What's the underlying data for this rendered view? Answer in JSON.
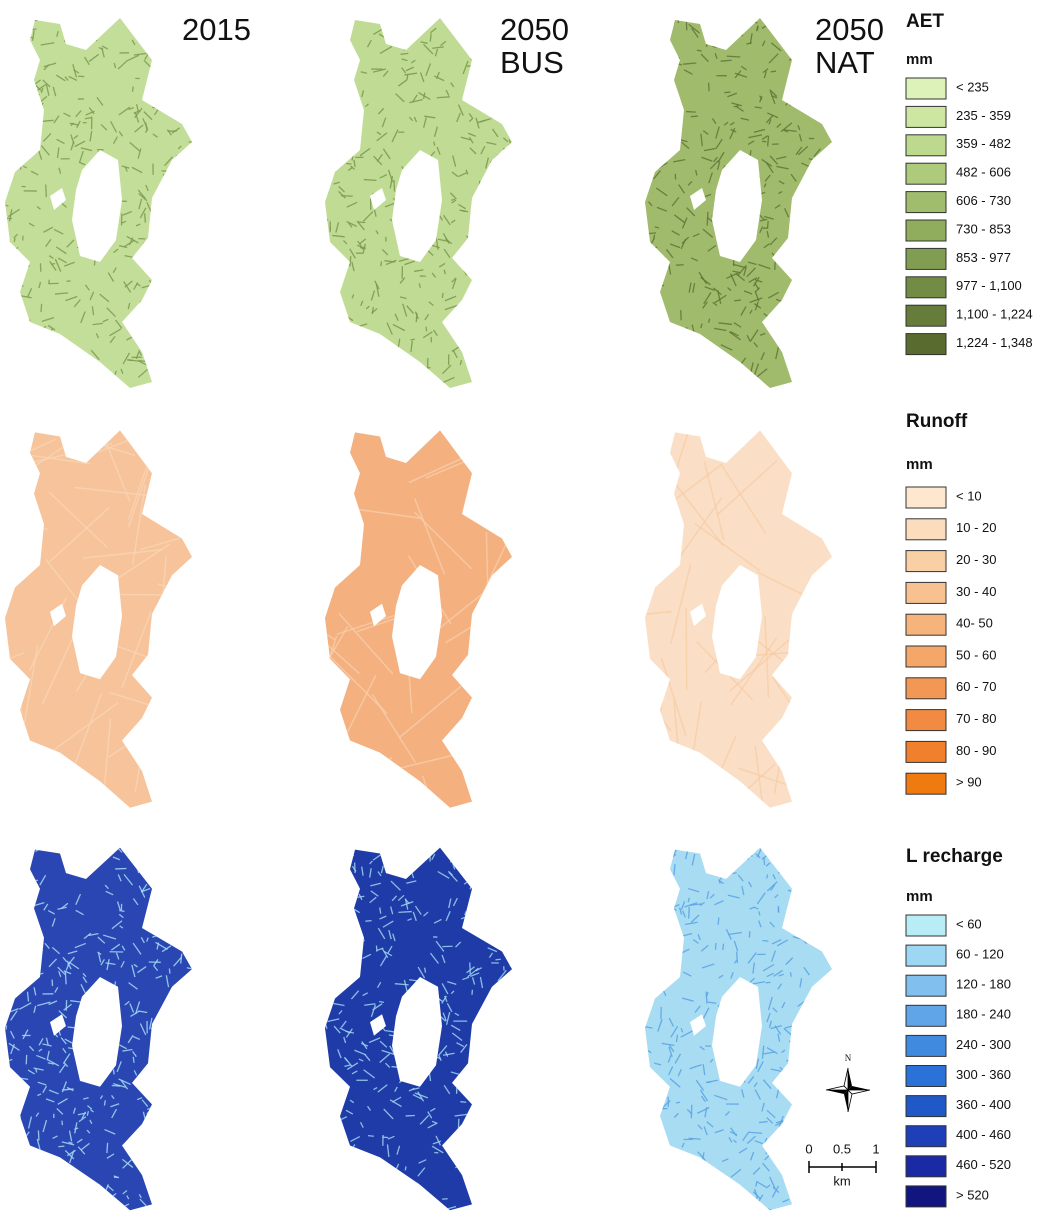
{
  "column_titles": [
    [
      "2015"
    ],
    [
      "2050",
      "BUS"
    ],
    [
      "2050",
      "NAT"
    ]
  ],
  "legends": [
    {
      "title": "AET",
      "unit": "mm",
      "items": [
        {
          "label": "< 235",
          "color": "#dcf2b8"
        },
        {
          "label": "235 - 359",
          "color": "#cde6a2"
        },
        {
          "label": "359 - 482",
          "color": "#bdd98e"
        },
        {
          "label": "482 - 606",
          "color": "#aecb7c"
        },
        {
          "label": "606 - 730",
          "color": "#9fbd6c"
        },
        {
          "label": "730 - 853",
          "color": "#90ad5e"
        },
        {
          "label": "853 - 977",
          "color": "#819d52"
        },
        {
          "label": "977 - 1,100",
          "color": "#728c46"
        },
        {
          "label": "1,100 - 1,224",
          "color": "#667c3b"
        },
        {
          "label": "1,224 - 1,348",
          "color": "#5a6b30"
        }
      ]
    },
    {
      "title": "Runoff",
      "unit": "mm",
      "items": [
        {
          "label": "< 10",
          "color": "#fde8cf"
        },
        {
          "label": "10 - 20",
          "color": "#fbddbe"
        },
        {
          "label": "20 - 30",
          "color": "#f9d0a6"
        },
        {
          "label": "30 - 40",
          "color": "#f7c190"
        },
        {
          "label": "40- 50",
          "color": "#f6b37c"
        },
        {
          "label": "50 - 60",
          "color": "#f5a669"
        },
        {
          "label": "60 - 70",
          "color": "#f39754"
        },
        {
          "label": "70 - 80",
          "color": "#f28b41"
        },
        {
          "label": "80 - 90",
          "color": "#f1802d"
        },
        {
          "label": "> 90",
          "color": "#ef7a10"
        }
      ]
    },
    {
      "title": "L recharge",
      "unit": "mm",
      "items": [
        {
          "label": "< 60",
          "color": "#b9edf5"
        },
        {
          "label": "60 - 120",
          "color": "#9dd7f3"
        },
        {
          "label": "120 - 180",
          "color": "#80bfee"
        },
        {
          "label": "180 - 240",
          "color": "#60a5e8"
        },
        {
          "label": "240 - 300",
          "color": "#408be0"
        },
        {
          "label": "300 - 360",
          "color": "#2b72d8"
        },
        {
          "label": "360 - 400",
          "color": "#2158c8"
        },
        {
          "label": "400 - 460",
          "color": "#1e3fb8"
        },
        {
          "label": "460 - 520",
          "color": "#1a2aa4"
        },
        {
          "label": "> 520",
          "color": "#10157f"
        }
      ]
    }
  ],
  "compass": {
    "label": "N"
  },
  "scale_bar": {
    "ticks": [
      "0",
      "0.5",
      "1"
    ],
    "unit": "km"
  }
}
